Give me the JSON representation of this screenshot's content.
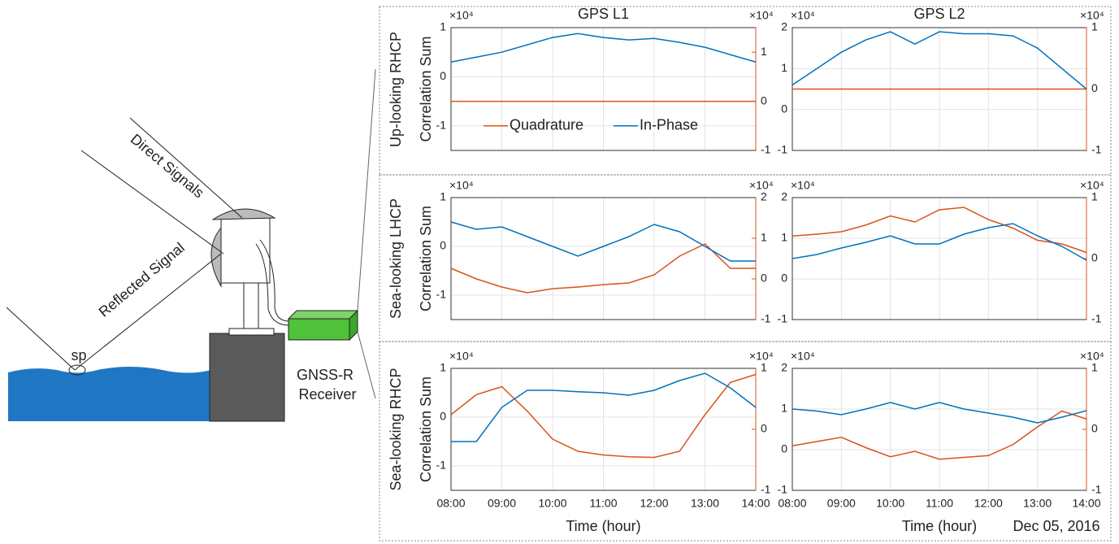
{
  "diagram": {
    "direct": "Direct Signals",
    "reflected": "Reflected Signal",
    "sp": "sp",
    "receiver_1": "GNSS-R",
    "receiver_2": "Receiver"
  },
  "row_labels": [
    "Up-looking RHCP",
    "Sea-looking LHCP",
    "Sea-looking RHCP"
  ],
  "date": "Dec 05, 2016",
  "chart_data": [
    {
      "type": "line",
      "title": "GPS L1",
      "ylabel": "Correlation Sum",
      "y_exponent": "×10⁴",
      "y2_exponent": "×10⁴",
      "x": [
        8,
        8.5,
        9,
        9.5,
        10,
        10.5,
        11,
        11.5,
        12,
        12.5,
        13,
        13.5,
        14
      ],
      "xlim": [
        8,
        14
      ],
      "xticks": [
        8,
        9,
        10,
        11,
        12,
        13,
        14
      ],
      "ylim": [
        -1.5,
        1
      ],
      "yticks": [
        -1,
        0,
        1
      ],
      "y2lim": [
        -1,
        1.5
      ],
      "y2ticks": [
        -1,
        0,
        1
      ],
      "grid": true,
      "legend": "lower center",
      "series": [
        {
          "name": "Quadrature",
          "color": "#d95319",
          "axis": "y2",
          "values": [
            0,
            0,
            0,
            0,
            0,
            0,
            0,
            0,
            0,
            0,
            0,
            0,
            0
          ]
        },
        {
          "name": "In-Phase",
          "color": "#0072bd",
          "values": [
            0.3,
            0.4,
            0.5,
            0.65,
            0.8,
            0.88,
            0.8,
            0.75,
            0.78,
            0.7,
            0.6,
            0.45,
            0.3
          ]
        }
      ]
    },
    {
      "type": "line",
      "title": "GPS L2",
      "y_exponent": "×10⁴",
      "y2_exponent": "×10⁴",
      "x": [
        8,
        8.5,
        9,
        9.5,
        10,
        10.5,
        11,
        11.5,
        12,
        12.5,
        13,
        13.5,
        14
      ],
      "xlim": [
        8,
        14
      ],
      "xticks": [
        8,
        9,
        10,
        11,
        12,
        13,
        14
      ],
      "ylim": [
        -1,
        2
      ],
      "yticks": [
        -1,
        0,
        1,
        2
      ],
      "y2lim": [
        -1,
        1
      ],
      "y2ticks": [
        -1,
        0,
        1
      ],
      "grid": true,
      "series": [
        {
          "color": "#d95319",
          "axis": "y2",
          "values": [
            0,
            0,
            0,
            0,
            0,
            0,
            0,
            0,
            0,
            0,
            0,
            0,
            0
          ]
        },
        {
          "color": "#0072bd",
          "values": [
            0.6,
            1.0,
            1.4,
            1.7,
            1.9,
            1.6,
            1.9,
            1.85,
            1.85,
            1.8,
            1.5,
            1.0,
            0.5
          ]
        }
      ]
    },
    {
      "type": "line",
      "ylabel": "Correlation Sum",
      "y_exponent": "×10⁴",
      "y2_exponent": "×10⁴",
      "x": [
        8,
        8.5,
        9,
        9.5,
        10,
        10.5,
        11,
        11.5,
        12,
        12.5,
        13,
        13.5,
        14
      ],
      "xlim": [
        8,
        14
      ],
      "xticks": [
        8,
        9,
        10,
        11,
        12,
        13,
        14
      ],
      "ylim": [
        -1.5,
        1
      ],
      "yticks": [
        -1,
        0,
        1
      ],
      "y2lim": [
        -1,
        2
      ],
      "y2ticks": [
        -1,
        0,
        1,
        2
      ],
      "grid": true,
      "series": [
        {
          "color": "#d95319",
          "axis": "y2",
          "values": [
            0.26,
            0.0,
            -0.2,
            -0.34,
            -0.24,
            -0.2,
            -0.14,
            -0.1,
            0.1,
            0.56,
            0.86,
            0.26,
            0.26
          ]
        },
        {
          "color": "#0072bd",
          "values": [
            0.5,
            0.35,
            0.4,
            0.2,
            0.0,
            -0.2,
            0.0,
            0.2,
            0.45,
            0.3,
            0.0,
            -0.3,
            -0.3
          ]
        }
      ]
    },
    {
      "type": "line",
      "y_exponent": "×10⁴",
      "y2_exponent": "×10⁴",
      "x": [
        8,
        8.5,
        9,
        9.5,
        10,
        10.5,
        11,
        11.5,
        12,
        12.5,
        13,
        13.5,
        14
      ],
      "xlim": [
        8,
        14
      ],
      "xticks": [
        8,
        9,
        10,
        11,
        12,
        13,
        14
      ],
      "ylim": [
        -1,
        2
      ],
      "yticks": [
        -1,
        0,
        1,
        2
      ],
      "y2lim": [
        -1,
        1
      ],
      "y2ticks": [
        -1,
        0,
        1
      ],
      "grid": true,
      "series": [
        {
          "color": "#d95319",
          "axis": "y2",
          "values": [
            0.37,
            0.4,
            0.44,
            0.55,
            0.7,
            0.6,
            0.8,
            0.84,
            0.64,
            0.5,
            0.3,
            0.24,
            0.1
          ]
        },
        {
          "color": "#0072bd",
          "values": [
            0.5,
            0.6,
            0.76,
            0.9,
            1.06,
            0.86,
            0.86,
            1.1,
            1.26,
            1.36,
            1.06,
            0.8,
            0.46
          ]
        }
      ]
    },
    {
      "type": "line",
      "ylabel": "Correlation Sum",
      "xlabel": "Time (hour)",
      "y_exponent": "×10⁴",
      "y2_exponent": "×10⁴",
      "x": [
        8,
        8.5,
        9,
        9.5,
        10,
        10.5,
        11,
        11.5,
        12,
        12.5,
        13,
        13.5,
        14
      ],
      "xlim": [
        8,
        14
      ],
      "xticks": [
        {
          "value": 8,
          "label": "08:00"
        },
        {
          "value": 9,
          "label": "09:00"
        },
        {
          "value": 10,
          "label": "10:00"
        },
        {
          "value": 11,
          "label": "11:00"
        },
        {
          "value": 12,
          "label": "12:00"
        },
        {
          "value": 13,
          "label": "13:00"
        },
        {
          "value": 14,
          "label": "14:00"
        }
      ],
      "ylim": [
        -1.5,
        1
      ],
      "yticks": [
        -1,
        0,
        1
      ],
      "y2lim": [
        -1,
        1
      ],
      "y2ticks": [
        -1,
        0,
        1
      ],
      "grid": true,
      "series": [
        {
          "color": "#d95319",
          "axis": "y2",
          "values": [
            0.24,
            0.57,
            0.7,
            0.3,
            -0.16,
            -0.36,
            -0.42,
            -0.45,
            -0.46,
            -0.36,
            0.24,
            0.77,
            0.9
          ]
        },
        {
          "color": "#0072bd",
          "values": [
            -0.5,
            -0.5,
            0.2,
            0.55,
            0.55,
            0.52,
            0.5,
            0.45,
            0.55,
            0.75,
            0.9,
            0.6,
            0.2
          ]
        }
      ]
    },
    {
      "type": "line",
      "xlabel": "Time (hour)",
      "y_exponent": "×10⁴",
      "y2_exponent": "×10⁴",
      "x": [
        8,
        8.5,
        9,
        9.5,
        10,
        10.5,
        11,
        11.5,
        12,
        12.5,
        13,
        13.5,
        14
      ],
      "xlim": [
        8,
        14
      ],
      "xticks": [
        {
          "value": 8,
          "label": "08:00"
        },
        {
          "value": 9,
          "label": "09:00"
        },
        {
          "value": 10,
          "label": "10:00"
        },
        {
          "value": 11,
          "label": "11:00"
        },
        {
          "value": 12,
          "label": "12:00"
        },
        {
          "value": 13,
          "label": "13:00"
        },
        {
          "value": 14,
          "label": "14:00"
        }
      ],
      "ylim": [
        -1,
        2
      ],
      "yticks": [
        -1,
        0,
        1,
        2
      ],
      "y2lim": [
        -1,
        1
      ],
      "y2ticks": [
        -1,
        0,
        1
      ],
      "grid": true,
      "series": [
        {
          "color": "#d95319",
          "axis": "y2",
          "values": [
            -0.27,
            -0.2,
            -0.13,
            -0.3,
            -0.45,
            -0.36,
            -0.49,
            -0.46,
            -0.43,
            -0.25,
            0.04,
            0.3,
            0.17
          ]
        },
        {
          "color": "#0072bd",
          "values": [
            1.0,
            0.95,
            0.86,
            1.0,
            1.16,
            1.0,
            1.16,
            1.0,
            0.9,
            0.8,
            0.66,
            0.8,
            0.96
          ]
        }
      ]
    }
  ]
}
